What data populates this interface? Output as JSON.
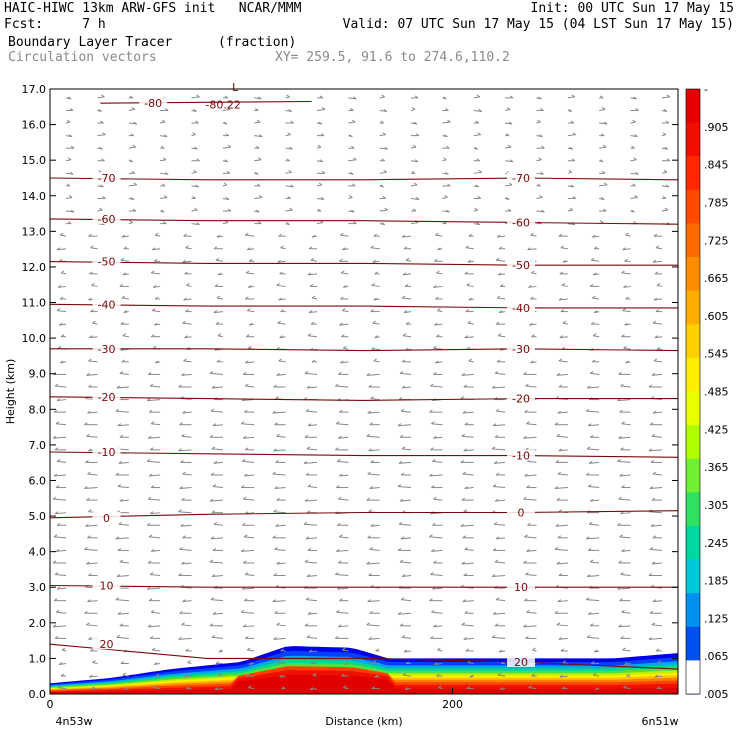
{
  "header": {
    "line1_left": "HAIC-HIWC 13km ARW-GFS init   NCAR/MMM",
    "line1_right": "Init: 00 UTC Sun 17 May 15",
    "line2_left": "Fcst:     7 h",
    "line2_right": "Valid: 07 UTC Sun 17 May 15 (04 LST Sun 17 May 15)",
    "line3_left": "Boundary Layer Tracer",
    "line3_mid": "(fraction)",
    "line4_left": "Circulation vectors",
    "line4_mid": "XY= 259.5, 91.6 to 274.6,110.2"
  },
  "chart_data": {
    "type": "heatmap",
    "xlabel": "Distance (km)",
    "ylabel": "Height (km)",
    "xlim": [
      0,
      312
    ],
    "ylim": [
      0,
      17
    ],
    "x_ticks": [
      {
        "value": 0,
        "label": "0"
      },
      {
        "value": 200,
        "label": "200"
      }
    ],
    "x_end_labels": {
      "left": "4n53w",
      "right": "6n51w"
    },
    "y_ticks": [
      "0.0",
      "1.0",
      "2.0",
      "3.0",
      "4.0",
      "5.0",
      "6.0",
      "7.0",
      "8.0",
      "9.0",
      "10.0",
      "11.0",
      "12.0",
      "13.0",
      "14.0",
      "15.0",
      "16.0",
      "17.0"
    ],
    "colorbar": {
      "labels": [
        "-",
        ".905",
        ".845",
        ".785",
        ".725",
        ".665",
        ".605",
        ".545",
        ".485",
        ".425",
        ".365",
        ".305",
        ".245",
        ".185",
        ".125",
        ".065",
        ".005"
      ],
      "colors": [
        "#e60000",
        "#f01000",
        "#ff2a00",
        "#ff4a00",
        "#ff6a00",
        "#ff8c00",
        "#ffae00",
        "#ffd000",
        "#ffee00",
        "#e8ff00",
        "#b0ff00",
        "#70f030",
        "#30e060",
        "#00d8a0",
        "#00c8d8",
        "#0090f0",
        "#0050f0",
        "#0020d0"
      ]
    },
    "temperature_contours": [
      {
        "label": "20",
        "heights": [
          1.4,
          1.0,
          1.0,
          0.9,
          0.7
        ]
      },
      {
        "label": "10",
        "heights": [
          3.05,
          3.0,
          3.0,
          3.0,
          3.0
        ]
      },
      {
        "label": "0",
        "heights": [
          4.95,
          5.05,
          5.1,
          5.1,
          5.15
        ]
      },
      {
        "label": "-10",
        "heights": [
          6.8,
          6.75,
          6.7,
          6.7,
          6.65
        ]
      },
      {
        "label": "-20",
        "heights": [
          8.35,
          8.3,
          8.25,
          8.3,
          8.3
        ]
      },
      {
        "label": "-30",
        "heights": [
          9.7,
          9.7,
          9.65,
          9.7,
          9.65
        ]
      },
      {
        "label": "-40",
        "heights": [
          10.95,
          10.9,
          10.9,
          10.85,
          10.85
        ]
      },
      {
        "label": "-50",
        "heights": [
          12.15,
          12.1,
          12.1,
          12.05,
          12.05
        ]
      },
      {
        "label": "-60",
        "heights": [
          13.35,
          13.3,
          13.3,
          13.25,
          13.2
        ]
      },
      {
        "label": "-70",
        "heights": [
          14.5,
          14.45,
          14.45,
          14.5,
          14.45
        ]
      },
      {
        "label": "-80",
        "heights": [
          16.6,
          16.65
        ]
      }
    ],
    "annotations": [
      "L",
      "-80.22"
    ],
    "tracer_top_km": [
      [
        0,
        0.3
      ],
      [
        30,
        0.45
      ],
      [
        60,
        0.7
      ],
      [
        95,
        0.9
      ],
      [
        118,
        1.35
      ],
      [
        150,
        1.3
      ],
      [
        168,
        1.0
      ],
      [
        200,
        1.0
      ],
      [
        240,
        1.0
      ],
      [
        280,
        1.0
      ],
      [
        312,
        1.15
      ]
    ]
  }
}
